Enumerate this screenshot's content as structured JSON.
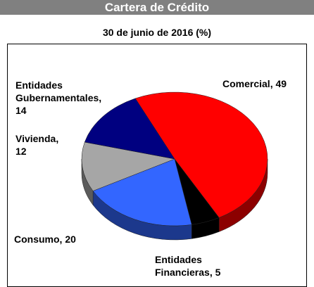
{
  "chart_data": {
    "type": "pie3d",
    "title": "Cartera de Crédito",
    "subtitle": "30 de junio de 2016 (%)",
    "categories": [
      "Comercial,",
      "Entidades Financieras,",
      "Consumo,",
      "Vivienda,",
      "Entidades Gubernamentales,"
    ],
    "values": [
      49,
      5,
      20,
      12,
      14
    ],
    "colors": [
      "#ff0000",
      "#000000",
      "#3366ff",
      "#a6a6a6",
      "#000080"
    ]
  }
}
